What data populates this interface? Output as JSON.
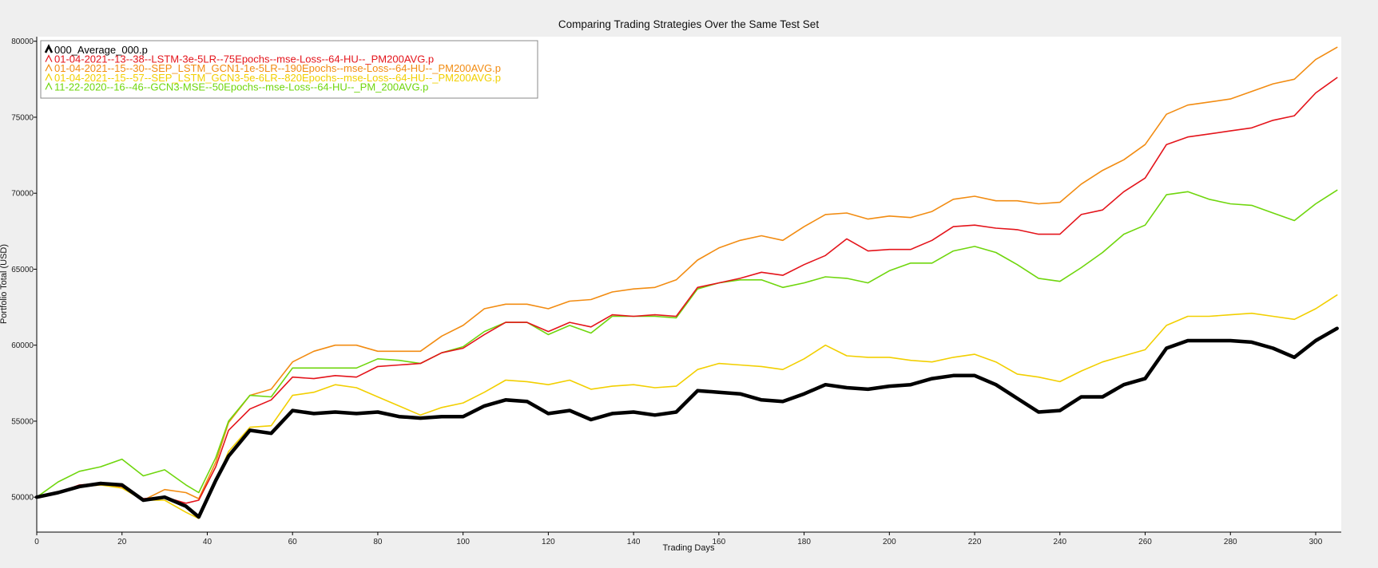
{
  "chart_data": {
    "type": "line",
    "title": "Comparing Trading Strategies Over the Same Test Set",
    "xlabel": "Trading Days",
    "ylabel": "Portfolio Total (USD)",
    "xlim": [
      0,
      306
    ],
    "ylim": [
      47700,
      80300
    ],
    "x_ticks": [
      0,
      20,
      40,
      60,
      80,
      100,
      120,
      140,
      160,
      180,
      200,
      220,
      240,
      260,
      280,
      300
    ],
    "y_ticks": [
      50000,
      55000,
      60000,
      65000,
      70000,
      75000,
      80000
    ],
    "grid": false,
    "legend_position": "top-left",
    "series": [
      {
        "name": "000_Average_000.p",
        "color": "#000000",
        "x": [
          0,
          5,
          10,
          15,
          20,
          25,
          30,
          35,
          38,
          42,
          45,
          50,
          55,
          60,
          65,
          70,
          75,
          80,
          85,
          90,
          95,
          100,
          105,
          110,
          115,
          120,
          125,
          130,
          135,
          140,
          145,
          150,
          155,
          160,
          165,
          170,
          175,
          180,
          185,
          190,
          195,
          200,
          205,
          210,
          215,
          220,
          225,
          230,
          235,
          240,
          245,
          250,
          255,
          260,
          265,
          270,
          275,
          280,
          285,
          290,
          295,
          300,
          305
        ],
        "y": [
          50000,
          50300,
          50700,
          50900,
          50800,
          49800,
          50000,
          49400,
          48700,
          51100,
          52700,
          54400,
          54200,
          55700,
          55500,
          55600,
          55500,
          55600,
          55300,
          55200,
          55300,
          55300,
          56000,
          56400,
          56300,
          55500,
          55700,
          55100,
          55500,
          55600,
          55400,
          55600,
          57000,
          56900,
          56800,
          56400,
          56300,
          56800,
          57400,
          57200,
          57100,
          57300,
          57400,
          57800,
          58000,
          58000,
          57400,
          56500,
          55600,
          55700,
          56600,
          56600,
          57400,
          57800,
          59800,
          60300,
          60300,
          60300,
          60200,
          59800,
          59200,
          60300,
          61100
        ]
      },
      {
        "name": "01-04-2021--13--38--LSTM-3e-5LR--75Epochs--mse-Loss--64-HU--_PM200AVG.p",
        "color": "#e4141b",
        "x": [
          0,
          5,
          10,
          15,
          20,
          25,
          30,
          35,
          38,
          42,
          45,
          50,
          55,
          60,
          65,
          70,
          75,
          80,
          85,
          90,
          95,
          100,
          105,
          110,
          115,
          120,
          125,
          130,
          135,
          140,
          145,
          150,
          155,
          160,
          165,
          170,
          175,
          180,
          185,
          190,
          195,
          200,
          205,
          210,
          215,
          220,
          225,
          230,
          235,
          240,
          245,
          250,
          255,
          260,
          265,
          270,
          275,
          280,
          285,
          290,
          295,
          300,
          305
        ],
        "y": [
          50000,
          50300,
          50800,
          50900,
          50700,
          49900,
          50000,
          49600,
          49800,
          52000,
          54400,
          55800,
          56400,
          57900,
          57800,
          58000,
          57900,
          58600,
          58700,
          58800,
          59500,
          59800,
          60700,
          61500,
          61500,
          60900,
          61500,
          61200,
          62000,
          61900,
          62000,
          61900,
          63800,
          64100,
          64400,
          64800,
          64600,
          65300,
          65900,
          67000,
          66200,
          66300,
          66300,
          66900,
          67800,
          67900,
          67700,
          67600,
          67300,
          67300,
          68600,
          68900,
          70100,
          71000,
          73200,
          73700,
          73900,
          74100,
          74300,
          74800,
          75100,
          76600,
          77600
        ]
      },
      {
        "name": "01-04-2021--15--30--SEP_LSTM_GCN1-1e-5LR--190Epochs--mse-Loss--64-HU--_PM200AVG.p",
        "color": "#f28c12",
        "x": [
          0,
          5,
          10,
          15,
          20,
          25,
          30,
          35,
          38,
          42,
          45,
          50,
          55,
          60,
          65,
          70,
          75,
          80,
          85,
          90,
          95,
          100,
          105,
          110,
          115,
          120,
          125,
          130,
          135,
          140,
          145,
          150,
          155,
          160,
          165,
          170,
          175,
          180,
          185,
          190,
          195,
          200,
          205,
          210,
          215,
          220,
          225,
          230,
          235,
          240,
          245,
          250,
          255,
          260,
          265,
          270,
          275,
          280,
          285,
          290,
          295,
          300,
          305
        ],
        "y": [
          50000,
          50300,
          50700,
          50800,
          50700,
          49800,
          50500,
          50300,
          49900,
          52300,
          54900,
          56700,
          57100,
          58900,
          59600,
          60000,
          60000,
          59600,
          59600,
          59600,
          60600,
          61300,
          62400,
          62700,
          62700,
          62400,
          62900,
          63000,
          63500,
          63700,
          63800,
          64300,
          65600,
          66400,
          66900,
          67200,
          66900,
          67800,
          68600,
          68700,
          68300,
          68500,
          68400,
          68800,
          69600,
          69800,
          69500,
          69500,
          69300,
          69400,
          70600,
          71500,
          72200,
          73200,
          75200,
          75800,
          76000,
          76200,
          76700,
          77200,
          77500,
          78800,
          79600
        ]
      },
      {
        "name": "01-04-2021--15--57--SEP_LSTM_GCN3-5e-6LR--820Epochs--mse-Loss--64-HU--_PM200AVG.p",
        "color": "#f2cf00",
        "x": [
          0,
          5,
          10,
          15,
          20,
          25,
          30,
          35,
          38,
          42,
          45,
          50,
          55,
          60,
          65,
          70,
          75,
          80,
          85,
          90,
          95,
          100,
          105,
          110,
          115,
          120,
          125,
          130,
          135,
          140,
          145,
          150,
          155,
          160,
          165,
          170,
          175,
          180,
          185,
          190,
          195,
          200,
          205,
          210,
          215,
          220,
          225,
          230,
          235,
          240,
          245,
          250,
          255,
          260,
          265,
          270,
          275,
          280,
          285,
          290,
          295,
          300,
          305
        ],
        "y": [
          50000,
          50300,
          50700,
          50800,
          50600,
          49800,
          49800,
          49000,
          48600,
          51000,
          53000,
          54600,
          54700,
          56700,
          56900,
          57400,
          57200,
          56600,
          56000,
          55400,
          55900,
          56200,
          56900,
          57700,
          57600,
          57400,
          57700,
          57100,
          57300,
          57400,
          57200,
          57300,
          58400,
          58800,
          58700,
          58600,
          58400,
          59100,
          60000,
          59300,
          59200,
          59200,
          59000,
          58900,
          59200,
          59400,
          58900,
          58100,
          57900,
          57600,
          58300,
          58900,
          59300,
          59700,
          61300,
          61900,
          61900,
          62000,
          62100,
          61900,
          61700,
          62400,
          63300
        ]
      },
      {
        "name": "11-22-2020--16--46--GCN3-MSE--50Epochs--mse-Loss--64-HU--_PM_200AVG.p",
        "color": "#6fd60d",
        "x": [
          0,
          5,
          10,
          15,
          20,
          25,
          30,
          35,
          38,
          42,
          45,
          50,
          55,
          60,
          65,
          70,
          75,
          80,
          85,
          90,
          95,
          100,
          105,
          110,
          115,
          120,
          125,
          130,
          135,
          140,
          145,
          150,
          155,
          160,
          165,
          170,
          175,
          180,
          185,
          190,
          195,
          200,
          205,
          210,
          215,
          220,
          225,
          230,
          235,
          240,
          245,
          250,
          255,
          260,
          265,
          270,
          275,
          280,
          285,
          290,
          295,
          300,
          305
        ],
        "y": [
          50000,
          51000,
          51700,
          52000,
          52500,
          51400,
          51800,
          50800,
          50300,
          52600,
          55000,
          56700,
          56600,
          58500,
          58500,
          58500,
          58500,
          59100,
          59000,
          58800,
          59500,
          59900,
          60900,
          61500,
          61500,
          60700,
          61300,
          60800,
          61900,
          61900,
          61900,
          61800,
          63700,
          64100,
          64300,
          64300,
          63800,
          64100,
          64500,
          64400,
          64100,
          64900,
          65400,
          65400,
          66200,
          66500,
          66100,
          65300,
          64400,
          64200,
          65100,
          66100,
          67300,
          67900,
          69900,
          70100,
          69600,
          69300,
          69200,
          68700,
          68200,
          69300,
          70200
        ]
      }
    ]
  }
}
